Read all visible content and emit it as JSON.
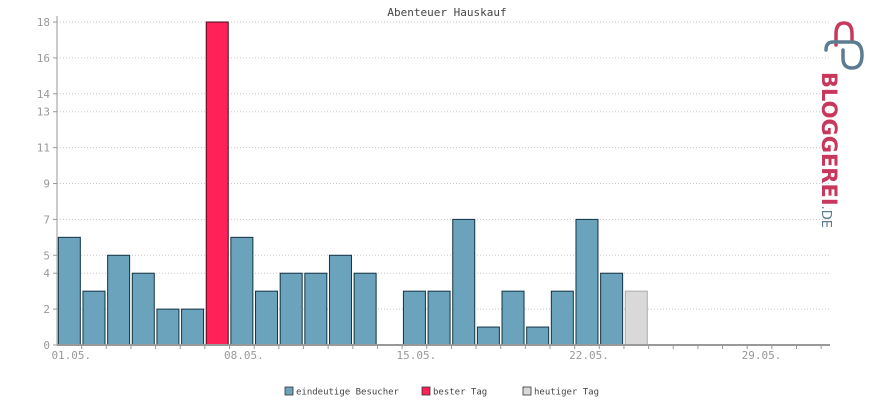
{
  "chart_data": {
    "type": "bar",
    "title": "Abenteuer Hauskauf",
    "xlabel": "",
    "ylabel": "",
    "ylim": [
      0,
      18
    ],
    "y_ticks": [
      0,
      2,
      4,
      5,
      7,
      9,
      11,
      13,
      14,
      16,
      18
    ],
    "x_tick_labels": [
      {
        "day": 1,
        "label": "01.05."
      },
      {
        "day": 8,
        "label": "08.05."
      },
      {
        "day": 15,
        "label": "15.05."
      },
      {
        "day": 22,
        "label": "22.05."
      },
      {
        "day": 29,
        "label": "29.05."
      }
    ],
    "days": [
      1,
      2,
      3,
      4,
      5,
      6,
      7,
      8,
      9,
      10,
      11,
      12,
      13,
      14,
      15,
      16,
      17,
      18,
      19,
      20,
      21,
      22,
      23,
      24,
      25,
      26,
      27,
      28,
      29,
      30,
      31
    ],
    "values": [
      6,
      3,
      5,
      4,
      2,
      2,
      18,
      6,
      3,
      4,
      4,
      5,
      4,
      0,
      3,
      3,
      7,
      1,
      3,
      1,
      3,
      7,
      4,
      3,
      0,
      0,
      0,
      0,
      0,
      0,
      0
    ],
    "best_day": 7,
    "today": 24,
    "grid": true,
    "legend_position": "bottom",
    "series": [
      {
        "name": "eindeutige Besucher",
        "color": "#6aa3bb"
      },
      {
        "name": "bester Tag",
        "color": "#ff2157"
      },
      {
        "name": "heutiger Tag",
        "color": "#d9d9d9"
      }
    ]
  },
  "brand": {
    "name_main": "BLOGGEREI",
    "name_suffix": ".DE",
    "color_primary": "#c8385c",
    "color_secondary": "#5c7d91"
  }
}
